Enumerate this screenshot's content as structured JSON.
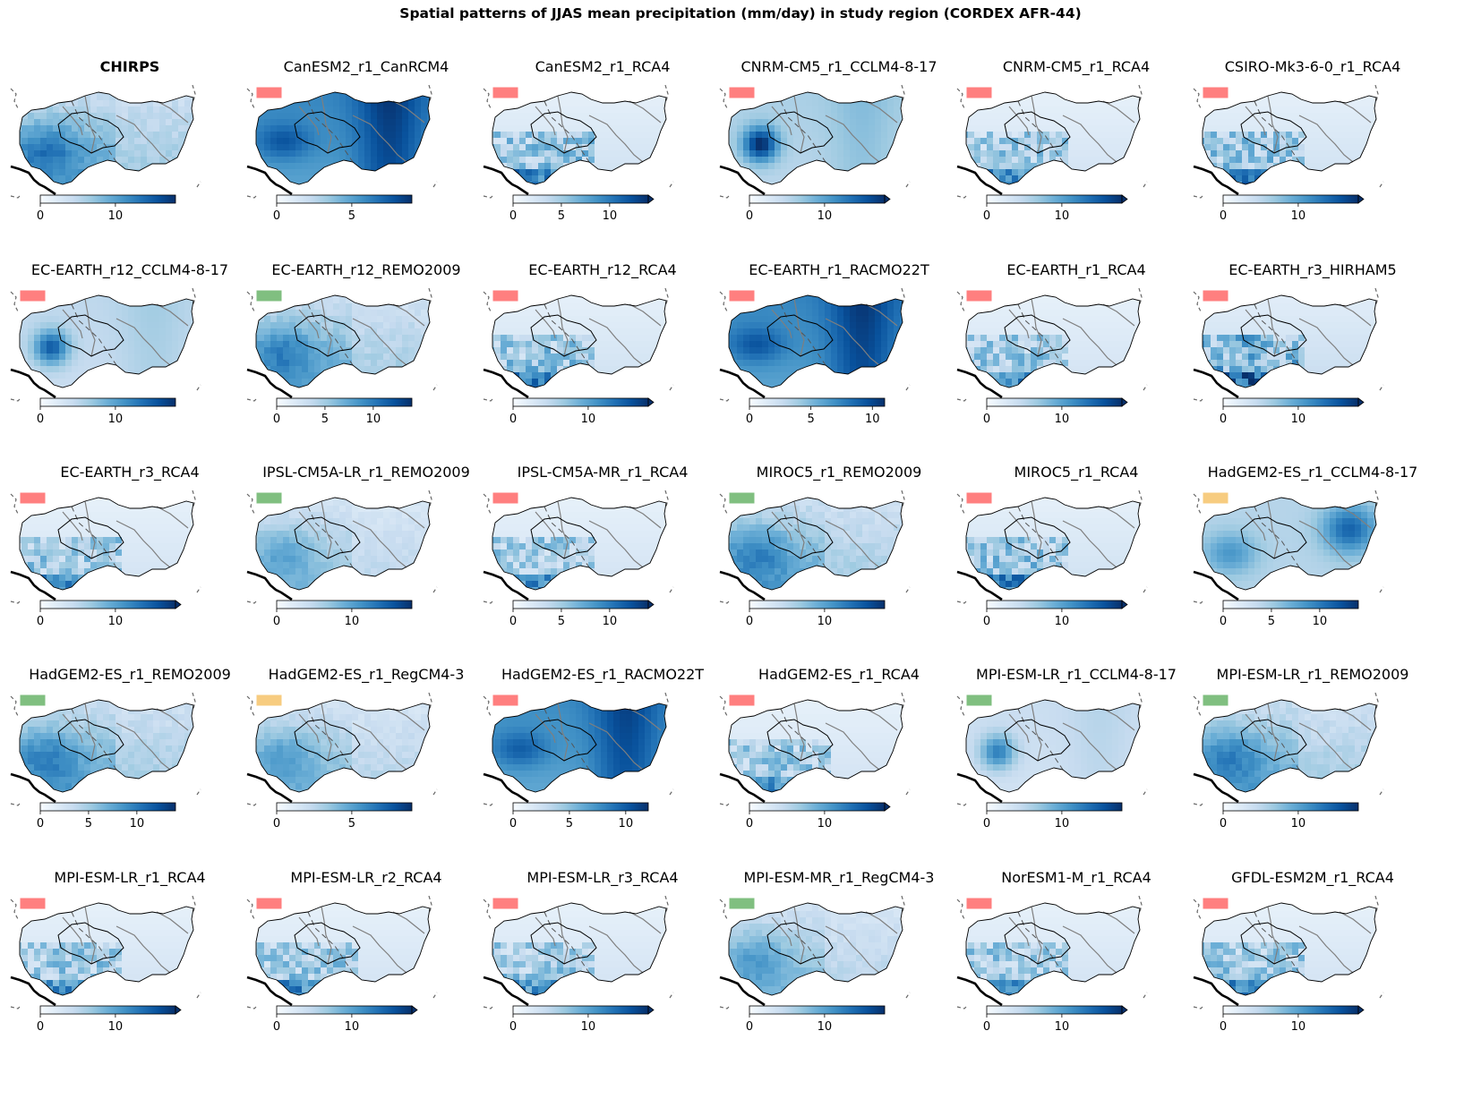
{
  "title": "Spatial patterns of JJAS mean precipitation (mm/day) in study region (CORDEX AFR-44)",
  "units": "mm/day",
  "colormap": {
    "name": "Blues",
    "stops": [
      "#f7fbff",
      "#deebf7",
      "#c6dbef",
      "#9ecae1",
      "#6baed6",
      "#4292c6",
      "#2171b5",
      "#08519c",
      "#08306b"
    ]
  },
  "flag_colors": {
    "red": "#ff7f7f",
    "green": "#80bf80",
    "orange": "#f7cc80"
  },
  "panels": [
    {
      "name": "CHIRPS",
      "bold": true,
      "flag": null,
      "ticks": [
        "0",
        "10"
      ],
      "tick_values": [
        0,
        10
      ],
      "vmax": 18,
      "extend": false,
      "pattern": "obs",
      "intensity": 0.55
    },
    {
      "name": "CanESM2_r1_CanRCM4",
      "bold": false,
      "flag": "red",
      "ticks": [
        "0",
        "5"
      ],
      "tick_values": [
        0,
        5
      ],
      "vmax": 9,
      "extend": false,
      "pattern": "wet",
      "intensity": 0.85
    },
    {
      "name": "CanESM2_r1_RCA4",
      "bold": false,
      "flag": "red",
      "ticks": [
        "0",
        "5",
        "10"
      ],
      "tick_values": [
        0,
        5,
        10
      ],
      "vmax": 14,
      "extend": true,
      "pattern": "rca",
      "intensity": 0.35
    },
    {
      "name": "CNRM-CM5_r1_CCLM4-8-17",
      "bold": false,
      "flag": "red",
      "ticks": [
        "0",
        "10"
      ],
      "tick_values": [
        0,
        10
      ],
      "vmax": 18,
      "extend": true,
      "pattern": "west",
      "intensity": 0.7
    },
    {
      "name": "CNRM-CM5_r1_RCA4",
      "bold": false,
      "flag": "red",
      "ticks": [
        "0",
        "10"
      ],
      "tick_values": [
        0,
        10
      ],
      "vmax": 18,
      "extend": true,
      "pattern": "rca",
      "intensity": 0.3
    },
    {
      "name": "CSIRO-Mk3-6-0_r1_RCA4",
      "bold": false,
      "flag": "red",
      "ticks": [
        "0",
        "10"
      ],
      "tick_values": [
        0,
        10
      ],
      "vmax": 18,
      "extend": true,
      "pattern": "rca",
      "intensity": 0.35
    },
    {
      "name": "EC-EARTH_r12_CCLM4-8-17",
      "bold": false,
      "flag": "red",
      "ticks": [
        "0",
        "10"
      ],
      "tick_values": [
        0,
        10
      ],
      "vmax": 18,
      "extend": false,
      "pattern": "west",
      "intensity": 0.5
    },
    {
      "name": "EC-EARTH_r12_REMO2009",
      "bold": false,
      "flag": "green",
      "ticks": [
        "0",
        "5",
        "10"
      ],
      "tick_values": [
        0,
        5,
        10
      ],
      "vmax": 14,
      "extend": false,
      "pattern": "obs",
      "intensity": 0.5
    },
    {
      "name": "EC-EARTH_r12_RCA4",
      "bold": false,
      "flag": "red",
      "ticks": [
        "0",
        "10"
      ],
      "tick_values": [
        0,
        10
      ],
      "vmax": 18,
      "extend": true,
      "pattern": "rca",
      "intensity": 0.35
    },
    {
      "name": "EC-EARTH_r1_RACMO22T",
      "bold": false,
      "flag": "red",
      "ticks": [
        "0",
        "5",
        "10"
      ],
      "tick_values": [
        0,
        5,
        10
      ],
      "vmax": 11,
      "extend": false,
      "pattern": "wet",
      "intensity": 0.85
    },
    {
      "name": "EC-EARTH_r1_RCA4",
      "bold": false,
      "flag": "red",
      "ticks": [
        "0",
        "10"
      ],
      "tick_values": [
        0,
        10
      ],
      "vmax": 18,
      "extend": true,
      "pattern": "rca",
      "intensity": 0.3
    },
    {
      "name": "EC-EARTH_r3_HIRHAM5",
      "bold": false,
      "flag": "red",
      "ticks": [
        "0",
        "10"
      ],
      "tick_values": [
        0,
        10
      ],
      "vmax": 18,
      "extend": true,
      "pattern": "rca",
      "intensity": 0.5
    },
    {
      "name": "EC-EARTH_r3_RCA4",
      "bold": false,
      "flag": "red",
      "ticks": [
        "0",
        "10"
      ],
      "tick_values": [
        0,
        10
      ],
      "vmax": 18,
      "extend": true,
      "pattern": "rca",
      "intensity": 0.3
    },
    {
      "name": "IPSL-CM5A-LR_r1_REMO2009",
      "bold": false,
      "flag": "green",
      "ticks": [
        "0",
        "10"
      ],
      "tick_values": [
        0,
        10
      ],
      "vmax": 18,
      "extend": false,
      "pattern": "obs",
      "intensity": 0.3
    },
    {
      "name": "IPSL-CM5A-MR_r1_RCA4",
      "bold": false,
      "flag": "red",
      "ticks": [
        "0",
        "5",
        "10"
      ],
      "tick_values": [
        0,
        5,
        10
      ],
      "vmax": 14,
      "extend": true,
      "pattern": "rca",
      "intensity": 0.3
    },
    {
      "name": "MIROC5_r1_REMO2009",
      "bold": false,
      "flag": "green",
      "ticks": [
        "0",
        "10"
      ],
      "tick_values": [
        0,
        10
      ],
      "vmax": 18,
      "extend": false,
      "pattern": "obs",
      "intensity": 0.5
    },
    {
      "name": "MIROC5_r1_RCA4",
      "bold": false,
      "flag": "red",
      "ticks": [
        "0",
        "10"
      ],
      "tick_values": [
        0,
        10
      ],
      "vmax": 18,
      "extend": true,
      "pattern": "rca",
      "intensity": 0.35
    },
    {
      "name": "HadGEM2-ES_r1_CCLM4-8-17",
      "bold": false,
      "flag": "orange",
      "ticks": [
        "0",
        "5",
        "10"
      ],
      "tick_values": [
        0,
        5,
        10
      ],
      "vmax": 14,
      "extend": false,
      "pattern": "east",
      "intensity": 0.6
    },
    {
      "name": "HadGEM2-ES_r1_REMO2009",
      "bold": false,
      "flag": "green",
      "ticks": [
        "0",
        "5",
        "10"
      ],
      "tick_values": [
        0,
        5,
        10
      ],
      "vmax": 14,
      "extend": false,
      "pattern": "obs",
      "intensity": 0.5
    },
    {
      "name": "HadGEM2-ES_r1_RegCM4-3",
      "bold": false,
      "flag": "orange",
      "ticks": [
        "0",
        "5"
      ],
      "tick_values": [
        0,
        5
      ],
      "vmax": 9,
      "extend": false,
      "pattern": "obs",
      "intensity": 0.35
    },
    {
      "name": "HadGEM2-ES_r1_RACMO22T",
      "bold": false,
      "flag": "red",
      "ticks": [
        "0",
        "5",
        "10"
      ],
      "tick_values": [
        0,
        5,
        10
      ],
      "vmax": 12,
      "extend": false,
      "pattern": "wet",
      "intensity": 0.8
    },
    {
      "name": "HadGEM2-ES_r1_RCA4",
      "bold": false,
      "flag": "red",
      "ticks": [
        "0",
        "10"
      ],
      "tick_values": [
        0,
        10
      ],
      "vmax": 18,
      "extend": true,
      "pattern": "rca",
      "intensity": 0.3
    },
    {
      "name": "MPI-ESM-LR_r1_CCLM4-8-17",
      "bold": false,
      "flag": "green",
      "ticks": [
        "0",
        "10"
      ],
      "tick_values": [
        0,
        10
      ],
      "vmax": 18,
      "extend": false,
      "pattern": "west",
      "intensity": 0.35
    },
    {
      "name": "MPI-ESM-LR_r1_REMO2009",
      "bold": false,
      "flag": "green",
      "ticks": [
        "0",
        "10"
      ],
      "tick_values": [
        0,
        10
      ],
      "vmax": 18,
      "extend": false,
      "pattern": "obs",
      "intensity": 0.5
    },
    {
      "name": "MPI-ESM-LR_r1_RCA4",
      "bold": false,
      "flag": "red",
      "ticks": [
        "0",
        "10"
      ],
      "tick_values": [
        0,
        10
      ],
      "vmax": 18,
      "extend": true,
      "pattern": "rca",
      "intensity": 0.3
    },
    {
      "name": "MPI-ESM-LR_r2_RCA4",
      "bold": false,
      "flag": "red",
      "ticks": [
        "0",
        "10"
      ],
      "tick_values": [
        0,
        10
      ],
      "vmax": 18,
      "extend": true,
      "pattern": "rca",
      "intensity": 0.3
    },
    {
      "name": "MPI-ESM-LR_r3_RCA4",
      "bold": false,
      "flag": "red",
      "ticks": [
        "0",
        "10"
      ],
      "tick_values": [
        0,
        10
      ],
      "vmax": 18,
      "extend": true,
      "pattern": "rca",
      "intensity": 0.3
    },
    {
      "name": "MPI-ESM-MR_r1_RegCM4-3",
      "bold": false,
      "flag": "green",
      "ticks": [
        "0",
        "10"
      ],
      "tick_values": [
        0,
        10
      ],
      "vmax": 18,
      "extend": false,
      "pattern": "obs",
      "intensity": 0.35
    },
    {
      "name": "NorESM1-M_r1_RCA4",
      "bold": false,
      "flag": "red",
      "ticks": [
        "0",
        "10"
      ],
      "tick_values": [
        0,
        10
      ],
      "vmax": 18,
      "extend": true,
      "pattern": "rca",
      "intensity": 0.3
    },
    {
      "name": "GFDL-ESM2M_r1_RCA4",
      "bold": false,
      "flag": "red",
      "ticks": [
        "0",
        "10"
      ],
      "tick_values": [
        0,
        10
      ],
      "vmax": 18,
      "extend": true,
      "pattern": "rca",
      "intensity": 0.3
    }
  ]
}
